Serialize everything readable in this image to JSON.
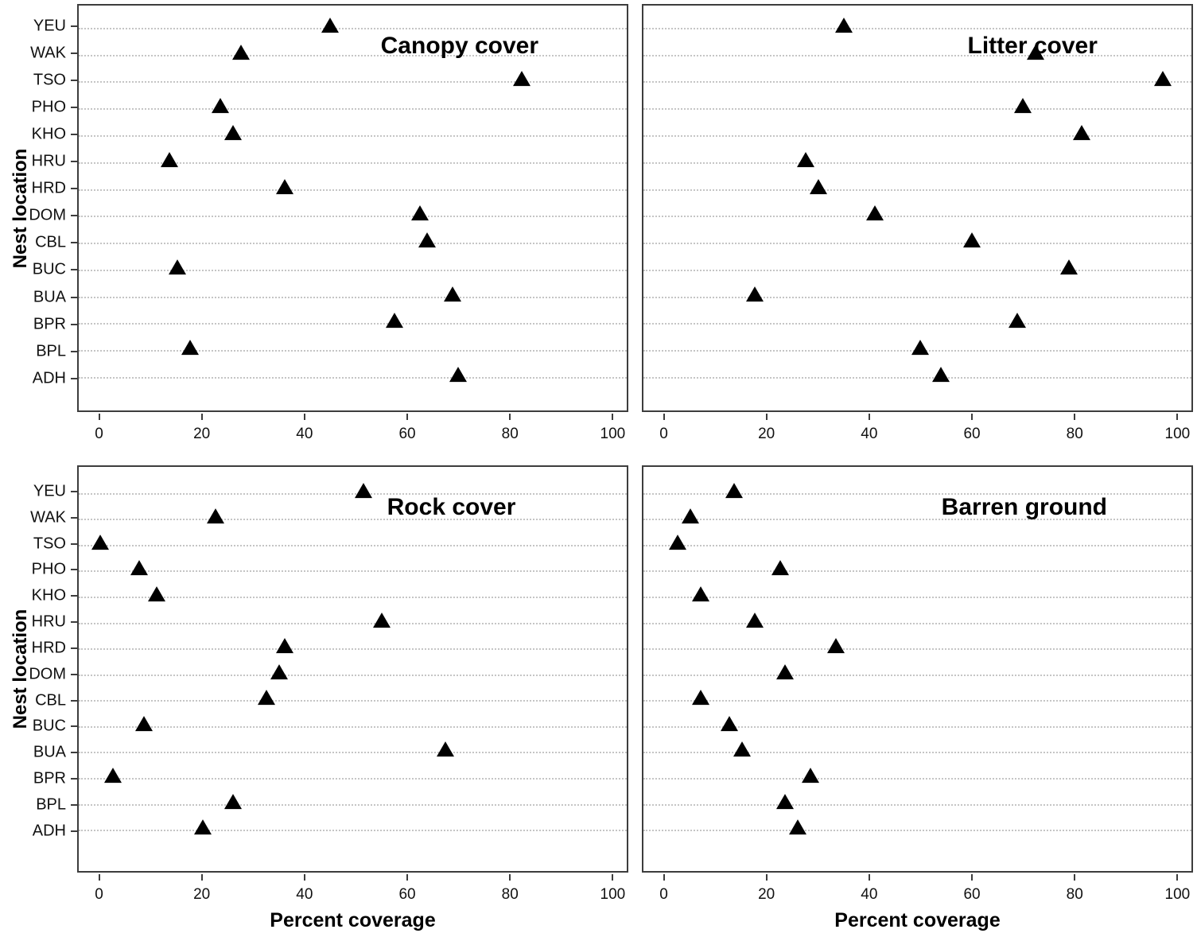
{
  "figure": {
    "ylabel": "Nest location",
    "xlabel": "Percent coverage",
    "categories_top_to_bottom": [
      "YEU",
      "WAK",
      "TSO",
      "PHO",
      "KHO",
      "HRU",
      "HRD",
      "DOM",
      "CBL",
      "BUC",
      "BUA",
      "BPR",
      "BPL",
      "ADH"
    ],
    "x_axis": {
      "ticks": [
        0,
        20,
        40,
        60,
        80,
        100
      ],
      "range": [
        0,
        100
      ]
    },
    "colors": {
      "marker": "#000000",
      "grid": "#c5c5c5",
      "axis": "#3d3d3d",
      "background": "#ffffff"
    }
  },
  "chart_data": [
    {
      "type": "scatter",
      "title": "Canopy cover",
      "marker": "filled-triangle-up",
      "grid": "horizontal-dotted",
      "xlabel": "Percent coverage",
      "ylabel": "Nest location",
      "xlim": [
        0,
        100
      ],
      "x_ticks": [
        0,
        20,
        40,
        60,
        80,
        100
      ],
      "categories": [
        "YEU",
        "WAK",
        "TSO",
        "PHO",
        "KHO",
        "HRU",
        "HRD",
        "DOM",
        "CBL",
        "BUC",
        "BUA",
        "BPR",
        "BPL",
        "ADH"
      ],
      "values": [
        45,
        27.5,
        82.5,
        23.5,
        26,
        13.5,
        36,
        62.5,
        64,
        15,
        69,
        57.5,
        17.5,
        70
      ]
    },
    {
      "type": "scatter",
      "title": "Litter cover",
      "marker": "filled-triangle-up",
      "grid": "horizontal-dotted",
      "xlabel": "Percent coverage",
      "ylabel": "Nest location",
      "xlim": [
        0,
        100
      ],
      "x_ticks": [
        0,
        20,
        40,
        60,
        80,
        100
      ],
      "categories": [
        "YEU",
        "WAK",
        "TSO",
        "PHO",
        "KHO",
        "HRU",
        "HRD",
        "DOM",
        "CBL",
        "BUC",
        "BUA",
        "BPR",
        "BPL",
        "ADH"
      ],
      "values": [
        35,
        72.5,
        97.5,
        70,
        81.5,
        27.5,
        30,
        41,
        60,
        79,
        17.5,
        69,
        50,
        54
      ]
    },
    {
      "type": "scatter",
      "title": "Rock cover",
      "marker": "filled-triangle-up",
      "grid": "horizontal-dotted",
      "xlabel": "Percent coverage",
      "ylabel": "Nest location",
      "xlim": [
        0,
        100
      ],
      "x_ticks": [
        0,
        20,
        40,
        60,
        80,
        100
      ],
      "categories": [
        "YEU",
        "WAK",
        "TSO",
        "PHO",
        "KHO",
        "HRU",
        "HRD",
        "DOM",
        "CBL",
        "BUC",
        "BUA",
        "BPR",
        "BPL",
        "ADH"
      ],
      "values": [
        51.5,
        22.5,
        0,
        7.5,
        11,
        55,
        36,
        35,
        32.5,
        8.5,
        67.5,
        2.5,
        26,
        20
      ]
    },
    {
      "type": "scatter",
      "title": "Barren ground",
      "marker": "filled-triangle-up",
      "grid": "horizontal-dotted",
      "xlabel": "Percent coverage",
      "ylabel": "Nest location",
      "xlim": [
        0,
        100
      ],
      "x_ticks": [
        0,
        20,
        40,
        60,
        80,
        100
      ],
      "categories": [
        "YEU",
        "WAK",
        "TSO",
        "PHO",
        "KHO",
        "HRU",
        "HRD",
        "DOM",
        "CBL",
        "BUC",
        "BUA",
        "BPR",
        "BPL",
        "ADH"
      ],
      "values": [
        13.5,
        5,
        2.5,
        22.5,
        7,
        17.5,
        33.5,
        23.5,
        7,
        12.5,
        15,
        28.5,
        23.5,
        26
      ]
    }
  ]
}
